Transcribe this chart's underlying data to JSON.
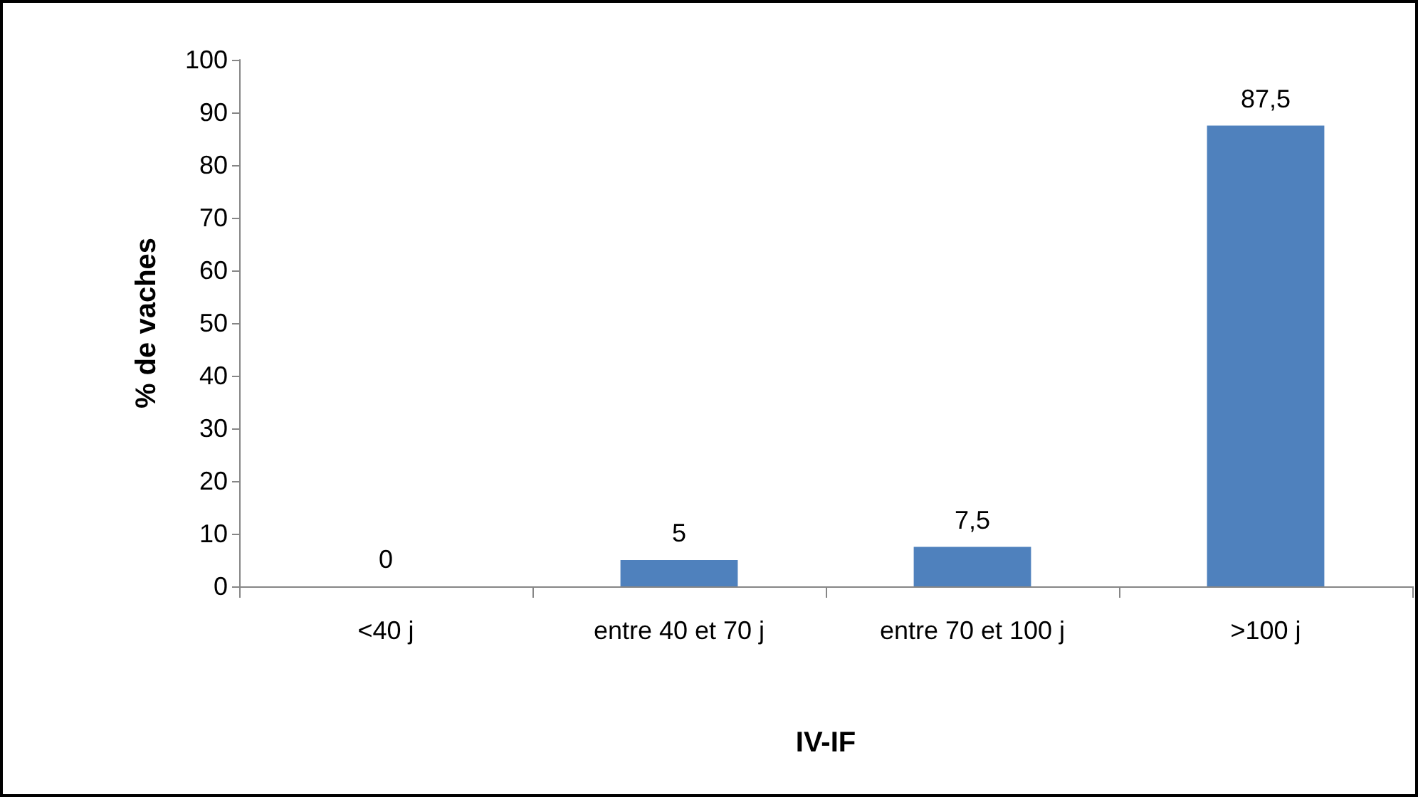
{
  "chart_data": {
    "type": "bar",
    "xlabel": "IV-IF",
    "ylabel": "% de vaches",
    "categories": [
      "<40 j",
      "entre 40 et 70 j",
      "entre 70 et 100 j",
      ">100 j"
    ],
    "values": [
      0,
      5,
      7.5,
      87.5
    ],
    "color": "#4f81bd",
    "value_labels": [
      "0",
      "5",
      "7,5",
      "87,5"
    ],
    "ylim": [
      0,
      100
    ],
    "yticks": [
      0,
      10,
      20,
      30,
      40,
      50,
      60,
      70,
      80,
      90,
      100
    ],
    "grid": false
  }
}
